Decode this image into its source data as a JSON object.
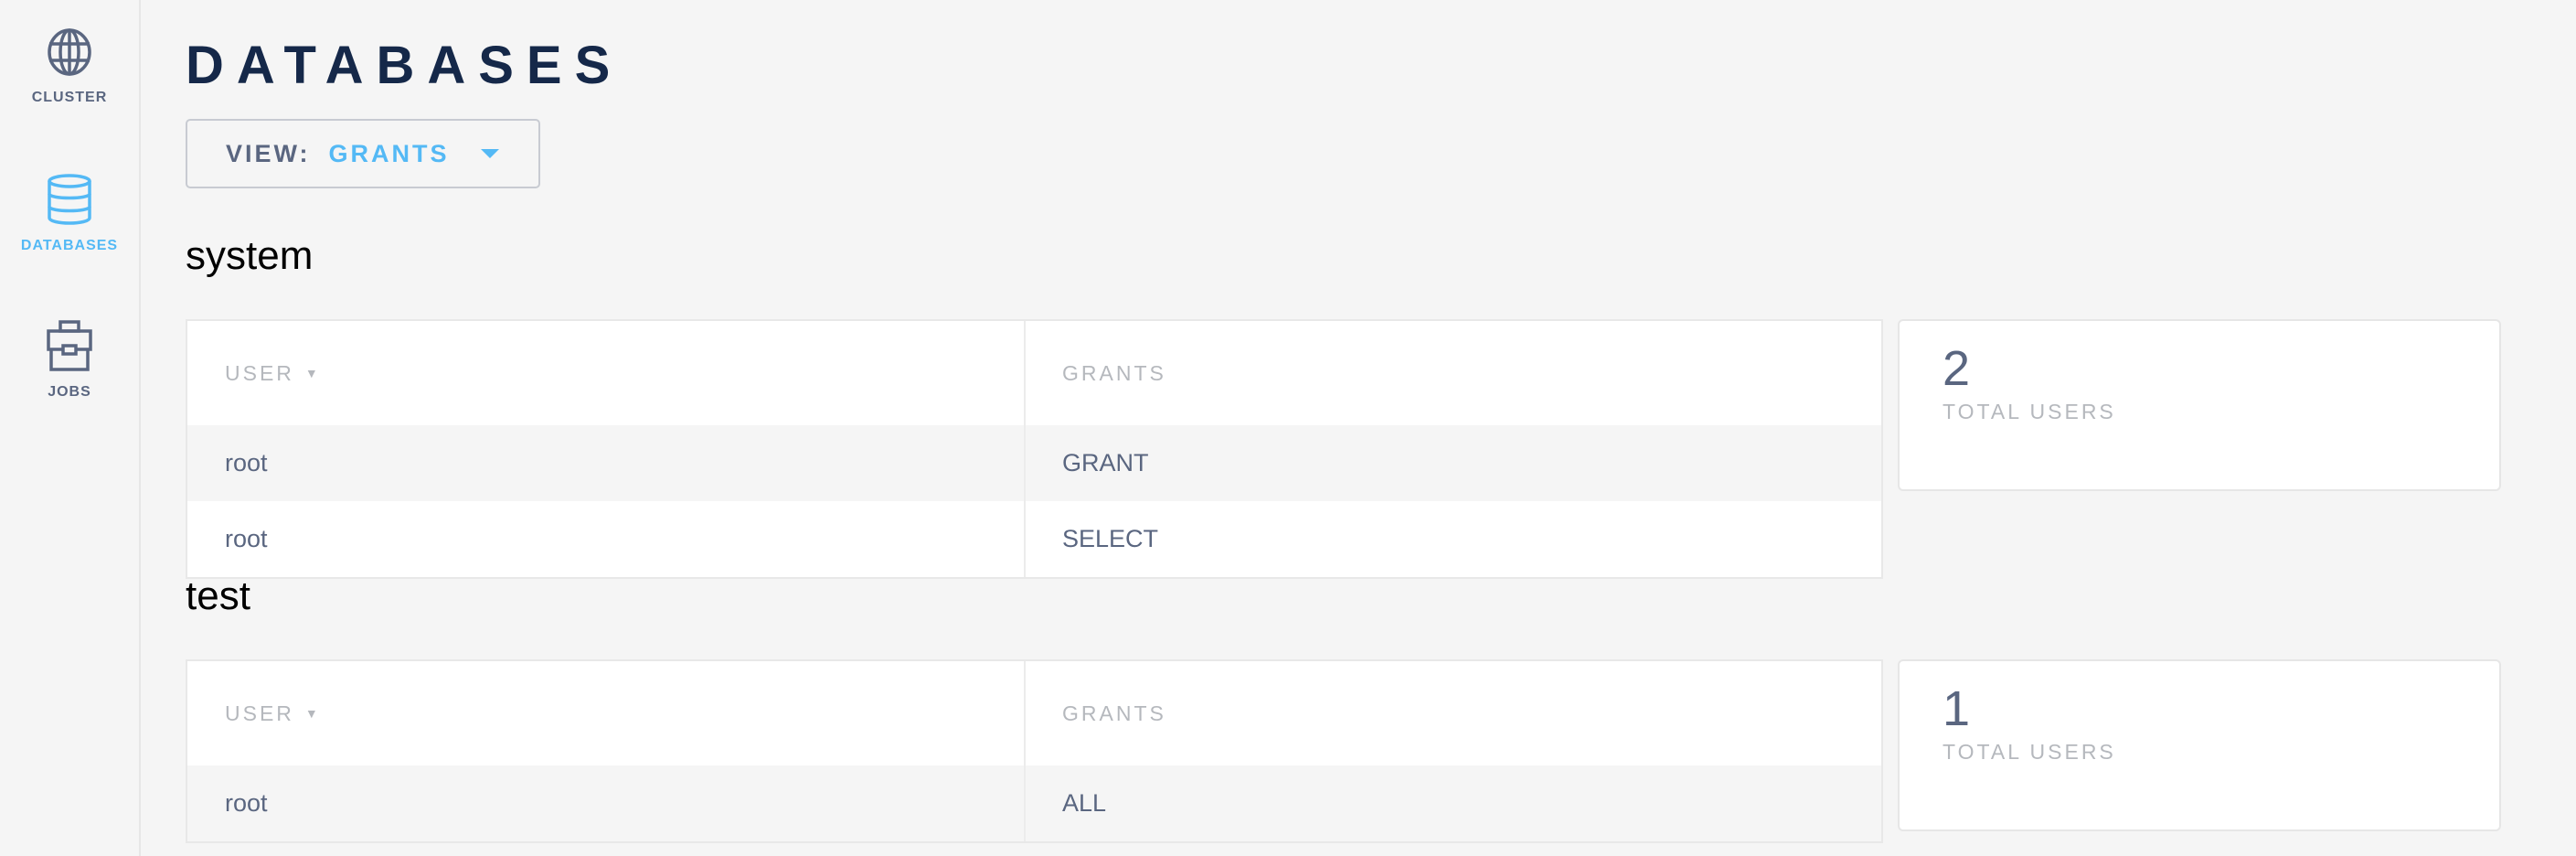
{
  "sidebar": {
    "items": [
      {
        "label": "CLUSTER",
        "icon": "globe-icon",
        "active": false
      },
      {
        "label": "DATABASES",
        "icon": "database-icon",
        "active": true
      },
      {
        "label": "JOBS",
        "icon": "briefcase-icon",
        "active": false
      }
    ]
  },
  "colors": {
    "accent": "#54b9f5",
    "title": "#152849",
    "text": "#5a6680",
    "muted": "#b5b8bd"
  },
  "page": {
    "title": "DATABASES",
    "view_label": "VIEW:",
    "view_value": "GRANTS"
  },
  "databases": [
    {
      "name": "system",
      "columns": [
        "USER",
        "GRANTS"
      ],
      "sort_indicator": "▼",
      "rows": [
        [
          "root",
          "GRANT"
        ],
        [
          "root",
          "SELECT"
        ]
      ],
      "total_users": "2",
      "total_users_label": "TOTAL USERS"
    },
    {
      "name": "test",
      "columns": [
        "USER",
        "GRANTS"
      ],
      "sort_indicator": "▼",
      "rows": [
        [
          "root",
          "ALL"
        ]
      ],
      "total_users": "1",
      "total_users_label": "TOTAL USERS"
    }
  ]
}
